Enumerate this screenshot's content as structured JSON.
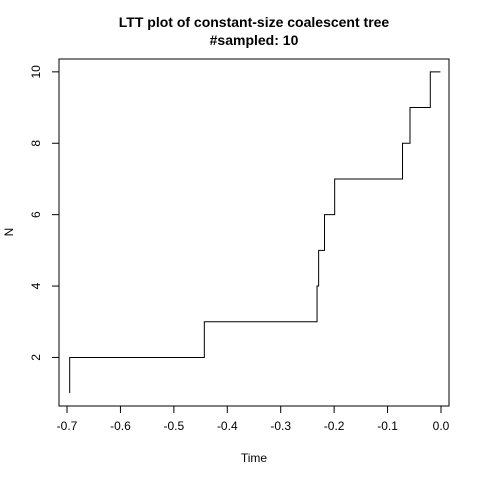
{
  "chart_data": {
    "type": "line",
    "title": "LTT plot of constant-size coalescent tree",
    "subtitle": "#sampled: 10",
    "xlabel": "Time",
    "ylabel": "N",
    "xlim": [
      -0.715,
      0.015
    ],
    "ylim": [
      0.64,
      10.36
    ],
    "x_ticks": [
      -0.7,
      -0.6,
      -0.5,
      -0.4,
      -0.3,
      -0.2,
      -0.1,
      0.0
    ],
    "x_tick_labels": [
      "-0.7",
      "-0.6",
      "-0.5",
      "-0.4",
      "-0.3",
      "-0.2",
      "-0.1",
      "0.0"
    ],
    "y_ticks": [
      2,
      4,
      6,
      8,
      10
    ],
    "y_tick_labels": [
      "2",
      "4",
      "6",
      "8",
      "10"
    ],
    "grid": false,
    "legend": "none",
    "line_color": "#000000",
    "step_points": [
      {
        "x": -0.695,
        "y": 1
      },
      {
        "x": -0.695,
        "y": 2
      },
      {
        "x": -0.443,
        "y": 2
      },
      {
        "x": -0.443,
        "y": 3
      },
      {
        "x": -0.232,
        "y": 3
      },
      {
        "x": -0.232,
        "y": 4
      },
      {
        "x": -0.229,
        "y": 4
      },
      {
        "x": -0.229,
        "y": 5
      },
      {
        "x": -0.218,
        "y": 5
      },
      {
        "x": -0.218,
        "y": 6
      },
      {
        "x": -0.199,
        "y": 6
      },
      {
        "x": -0.199,
        "y": 7
      },
      {
        "x": -0.072,
        "y": 7
      },
      {
        "x": -0.072,
        "y": 8
      },
      {
        "x": -0.058,
        "y": 8
      },
      {
        "x": -0.058,
        "y": 9
      },
      {
        "x": -0.02,
        "y": 9
      },
      {
        "x": -0.02,
        "y": 10
      },
      {
        "x": -0.001,
        "y": 10
      }
    ]
  }
}
